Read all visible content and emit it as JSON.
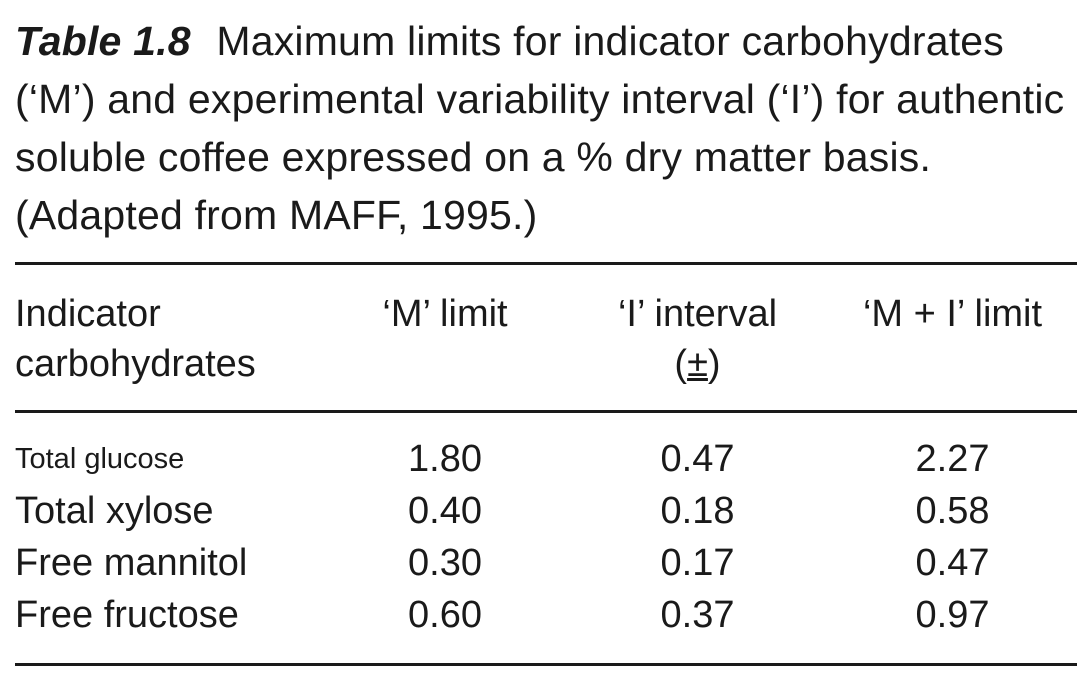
{
  "caption": {
    "label": "Table 1.8",
    "text": "Maximum limits for indicator carbohydrates (‘M’) and experimental variability interval (‘I’) for authentic soluble coffee expressed on a % dry matter basis. (Adapted from MAFF, 1995.)"
  },
  "table": {
    "headers": {
      "col1_line1": "Indicator",
      "col1_line2": "carbohydrates",
      "col2": "‘M’ limit",
      "col3_line1": "‘I’ interval",
      "col3_line2_open": "(",
      "col3_line2_pm": "±",
      "col3_line2_close": ")",
      "col4": "‘M + I’ limit"
    },
    "rows": [
      {
        "name": "Total glucose",
        "m_limit": "1.80",
        "i_interval": "0.47",
        "m_plus_i": "2.27"
      },
      {
        "name": "Total xylose",
        "m_limit": "0.40",
        "i_interval": "0.18",
        "m_plus_i": "0.58"
      },
      {
        "name": "Free mannitol",
        "m_limit": "0.30",
        "i_interval": "0.17",
        "m_plus_i": "0.47"
      },
      {
        "name": "Free fructose",
        "m_limit": "0.60",
        "i_interval": "0.37",
        "m_plus_i": "0.97"
      }
    ]
  }
}
